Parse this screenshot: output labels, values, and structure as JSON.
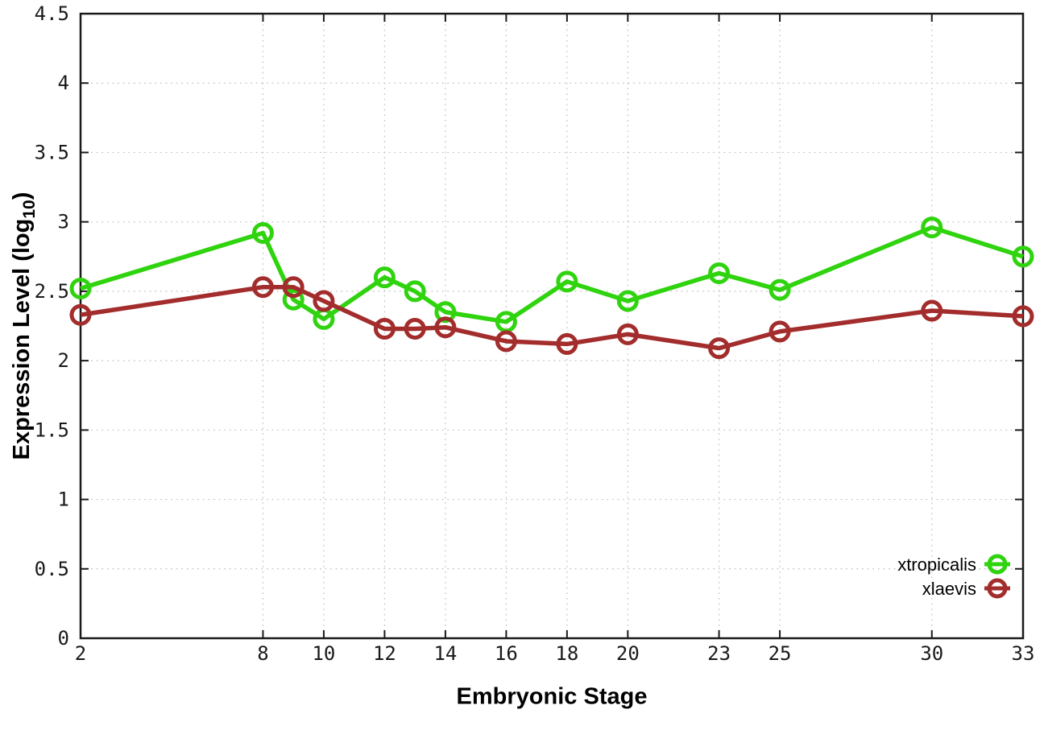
{
  "chart_data": {
    "type": "line",
    "title": "",
    "xlabel": "Embryonic Stage",
    "ylabel_prefix": "Expression Level (log",
    "ylabel_sub": "10",
    "ylabel_suffix": ")",
    "xlim": [
      2,
      33
    ],
    "ylim": [
      0,
      4.5
    ],
    "xticks": [
      2,
      8,
      10,
      12,
      14,
      16,
      18,
      20,
      23,
      25,
      30,
      33
    ],
    "yticks": [
      0,
      0.5,
      1,
      1.5,
      2,
      2.5,
      3,
      3.5,
      4,
      4.5
    ],
    "ytick_labels": [
      "0",
      "0.5",
      "1",
      "1.5",
      "2",
      "2.5",
      "3",
      "3.5",
      "4",
      "4.5"
    ],
    "grid": true,
    "grid_color": "#bcbcbc",
    "axis_color": "#1a1a1a",
    "background_color": "#ffffff",
    "legend_position": "inside-bottom-right",
    "marker": "open-circle",
    "x": [
      2,
      8,
      9,
      10,
      12,
      13,
      14,
      16,
      18,
      20,
      23,
      25,
      30,
      33
    ],
    "series": [
      {
        "name": "xtropicalis",
        "color": "#2fd30e",
        "values": [
          2.52,
          2.92,
          2.44,
          2.3,
          2.6,
          2.5,
          2.35,
          2.28,
          2.57,
          2.43,
          2.63,
          2.51,
          2.96,
          2.75
        ]
      },
      {
        "name": "xlaevis",
        "color": "#a32c2c",
        "values": [
          2.33,
          2.53,
          2.53,
          2.43,
          2.23,
          2.23,
          2.24,
          2.14,
          2.12,
          2.19,
          2.09,
          2.21,
          2.36,
          2.32
        ]
      }
    ]
  }
}
